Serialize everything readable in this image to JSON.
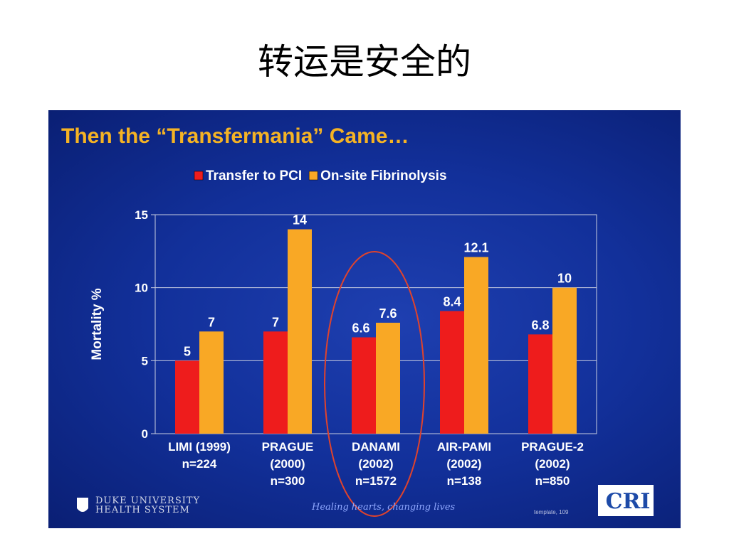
{
  "page": {
    "title": "转运是安全的"
  },
  "slide": {
    "heading": "Then the “Transfermania” Came…",
    "footer": {
      "duke_line1": "DUKE UNIVERSITY",
      "duke_line2": "HEALTH SYSTEM",
      "tagline": "Healing hearts, changing lives",
      "template": "template, 109",
      "cri": "CRI"
    }
  },
  "chart_data": {
    "type": "bar",
    "ylabel": "Mortality %",
    "ylim": [
      0,
      15
    ],
    "yticks": [
      0,
      5,
      10,
      15
    ],
    "grid": true,
    "legend_position": "top",
    "categories": [
      {
        "name": "LIMI (1999)",
        "n": "n=224"
      },
      {
        "name": "PRAGUE",
        "year": "(2000)",
        "n": "n=300"
      },
      {
        "name": "DANAMI",
        "year": "(2002)",
        "n": "n=1572"
      },
      {
        "name": "AIR-PAMI",
        "year": "(2002)",
        "n": "n=138"
      },
      {
        "name": "PRAGUE-2",
        "year": "(2002)",
        "n": "n=850"
      }
    ],
    "series": [
      {
        "name": "Transfer to PCI",
        "color": "#ee1c1c",
        "values": [
          5,
          7,
          6.6,
          8.4,
          6.8
        ],
        "labels": [
          "5",
          "7",
          "6.6",
          "8.4",
          "6.8"
        ]
      },
      {
        "name": "On-site Fibrinolysis",
        "color": "#f9a825",
        "values": [
          7,
          14,
          7.6,
          12.1,
          10
        ],
        "labels": [
          "7",
          "14",
          "7.6",
          "12.1",
          "10"
        ]
      }
    ],
    "highlighted_category": "DANAMI"
  }
}
